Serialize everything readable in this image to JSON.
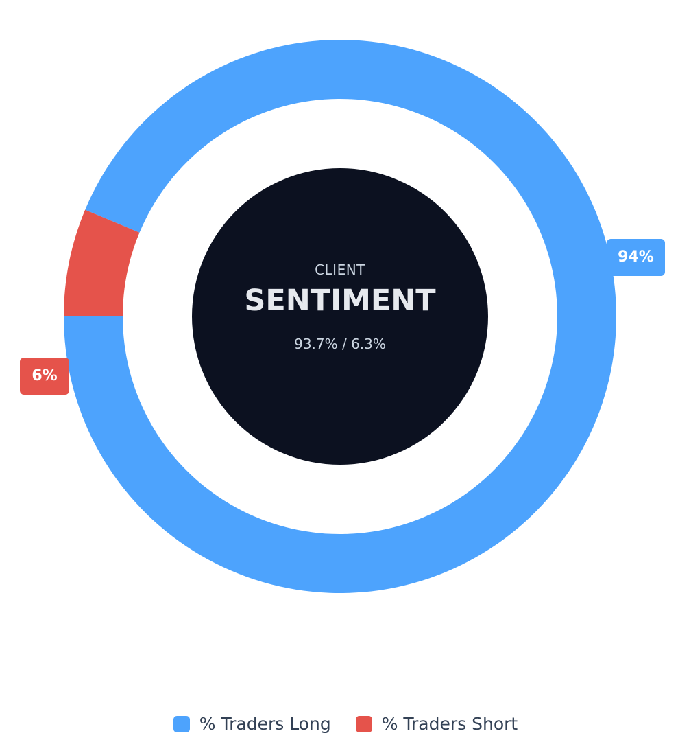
{
  "chart_data": {
    "type": "pie",
    "variant": "donut",
    "title": "SENTIMENT",
    "subtitle": "CLIENT",
    "center_ratio": "93.7% / 6.3%",
    "categories": [
      "% Traders Long",
      "% Traders Short"
    ],
    "values": [
      93.7,
      6.3
    ],
    "data_labels": [
      "94%",
      "6%"
    ],
    "colors": [
      "#4da3fd",
      "#e5534b"
    ],
    "center_color": "#0c1120",
    "legend_position": "bottom-center"
  },
  "legend": {
    "items": [
      {
        "label": "% Traders Long",
        "color": "#4da3fd"
      },
      {
        "label": "% Traders Short",
        "color": "#e5534b"
      }
    ]
  }
}
